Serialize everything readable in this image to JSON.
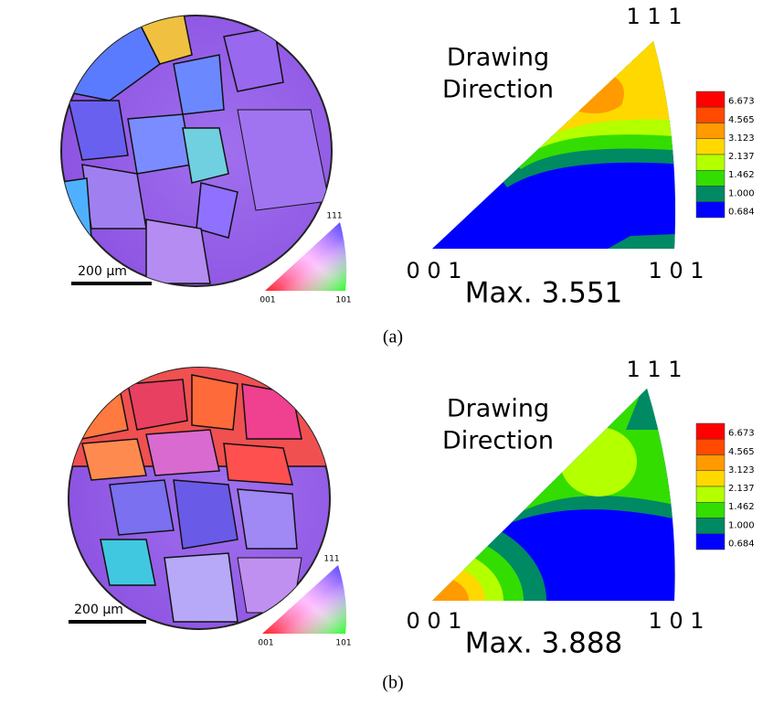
{
  "panels": [
    {
      "ebsd_map": {
        "scale_bar": "200 µm",
        "key": {
          "top": "111",
          "left": "001",
          "right": "101"
        }
      },
      "pole_figure": {
        "corners": {
          "top": "1 1 1",
          "left": "0 0 1",
          "right": "1 0 1"
        },
        "title_lines": [
          "Drawing",
          "Direction"
        ],
        "max": "Max. 3.551"
      },
      "colorbar": {
        "labels": [
          "6.673",
          "4.565",
          "3.123",
          "2.137",
          "1.462",
          "1.000",
          "0.684"
        ],
        "colors": [
          "#ff0000",
          "#ff4a00",
          "#ff9a00",
          "#ffd800",
          "#b4ff00",
          "#33dd00",
          "#008a63",
          "#0000ff"
        ]
      },
      "caption": "(a)"
    },
    {
      "ebsd_map": {
        "scale_bar": "200 µm",
        "key": {
          "top": "111",
          "left": "001",
          "right": "101"
        }
      },
      "pole_figure": {
        "corners": {
          "top": "1 1 1",
          "left": "0 0 1",
          "right": "1 0 1"
        },
        "title_lines": [
          "Drawing",
          "Direction"
        ],
        "max": "Max. 3.888"
      },
      "colorbar": {
        "labels": [
          "6.673",
          "4.565",
          "3.123",
          "2.137",
          "1.462",
          "1.000",
          "0.684"
        ],
        "colors": [
          "#ff0000",
          "#ff4a00",
          "#ff9a00",
          "#ffd800",
          "#b4ff00",
          "#33dd00",
          "#008a63",
          "#0000ff"
        ]
      },
      "caption": "(b)"
    }
  ]
}
